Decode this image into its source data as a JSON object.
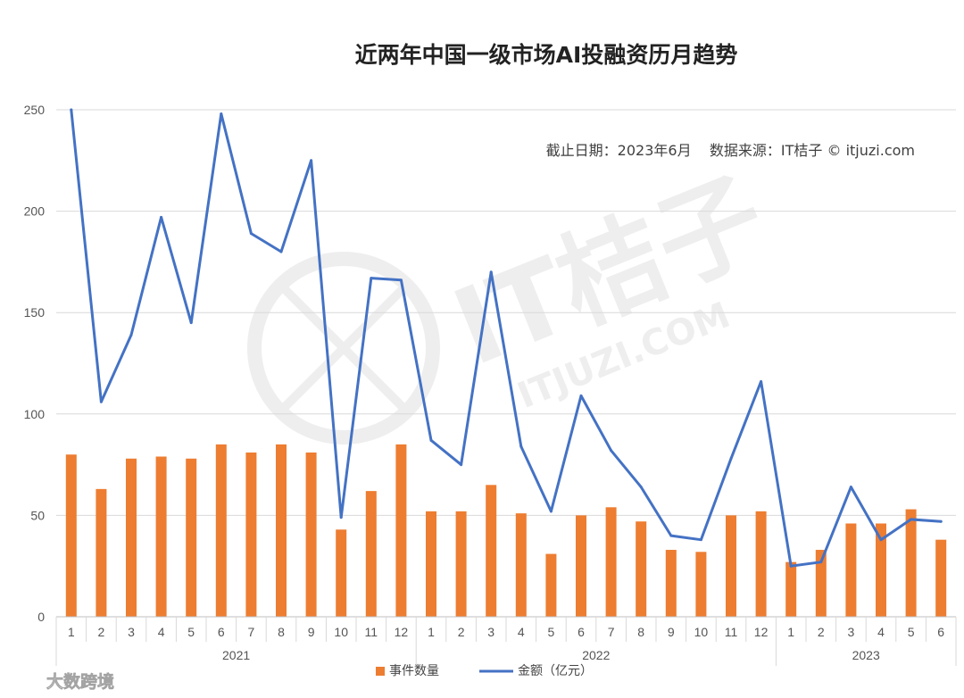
{
  "chart_data": {
    "type": "bar",
    "title": "近两年中国一级市场AI投融资历月趋势",
    "note": "截止日期：2023年6月    数据来源：IT桔子 © itjuzi.com",
    "categories": [
      "1",
      "2",
      "3",
      "4",
      "5",
      "6",
      "7",
      "8",
      "9",
      "10",
      "11",
      "12",
      "1",
      "2",
      "3",
      "4",
      "5",
      "6",
      "7",
      "8",
      "9",
      "10",
      "11",
      "12",
      "1",
      "2",
      "3",
      "4",
      "5",
      "6"
    ],
    "groups": [
      {
        "label": "2021",
        "count": 12
      },
      {
        "label": "2022",
        "count": 12
      },
      {
        "label": "2023",
        "count": 6
      }
    ],
    "ylim": [
      0,
      250
    ],
    "yticks": [
      0,
      50,
      100,
      150,
      200,
      250
    ],
    "grid": true,
    "legend_position": "bottom",
    "series": [
      {
        "name": "事件数量",
        "kind": "bar",
        "color": "#ED7D31",
        "values": [
          80,
          63,
          78,
          79,
          78,
          85,
          81,
          85,
          81,
          43,
          62,
          85,
          52,
          52,
          65,
          51,
          31,
          50,
          54,
          47,
          33,
          32,
          50,
          52,
          27,
          33,
          46,
          46,
          53,
          38
        ]
      },
      {
        "name": "金额（亿元）",
        "kind": "line",
        "color": "#4472C4",
        "values": [
          250,
          106,
          139,
          197,
          145,
          248,
          189,
          180,
          225,
          49,
          167,
          166,
          87,
          75,
          170,
          84,
          52,
          109,
          82,
          64,
          40,
          38,
          78,
          116,
          25,
          27,
          64,
          38,
          48,
          47
        ]
      }
    ]
  },
  "watermark": {
    "text": "IT桔子",
    "subtext": "ITJUZI.COM"
  },
  "badge": {
    "text": "大数跨境",
    "icon": "chat-bubbles-icon"
  }
}
